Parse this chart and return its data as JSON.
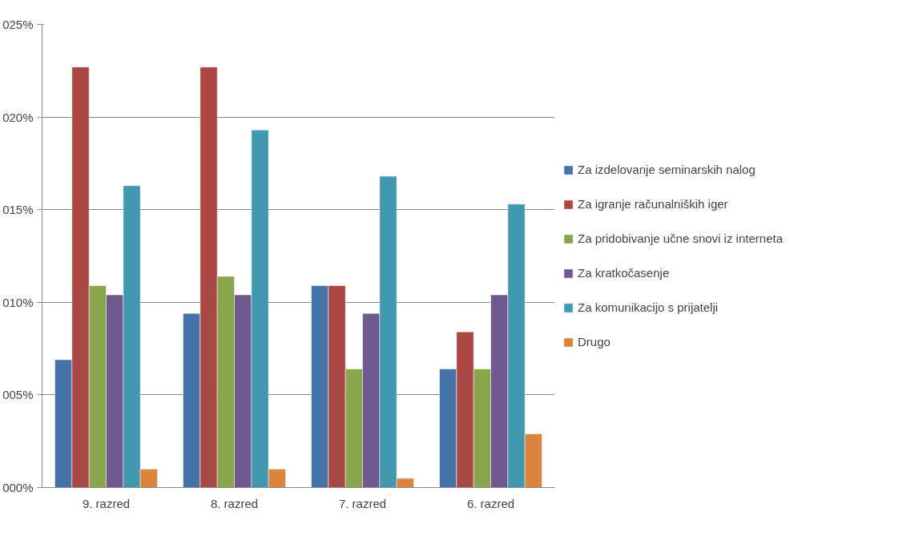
{
  "chart_data": {
    "type": "bar",
    "categories": [
      "9. razred",
      "8. razred",
      "7. razred",
      "6. razred"
    ],
    "series": [
      {
        "name": "Za izdelovanje seminarskih nalog",
        "color": "#4572a7",
        "values": [
          6.9,
          9.4,
          10.9,
          6.4
        ]
      },
      {
        "name": "Za igranje računalniških iger",
        "color": "#aa4643",
        "values": [
          22.7,
          22.7,
          10.9,
          8.4
        ]
      },
      {
        "name": "Za pridobivanje učne snovi iz interneta",
        "color": "#89a54e",
        "values": [
          10.9,
          11.4,
          6.4,
          6.4
        ]
      },
      {
        "name": "Za kratkočasenje",
        "color": "#71588f",
        "values": [
          10.4,
          10.4,
          9.4,
          10.4
        ]
      },
      {
        "name": "Za komunikacijo s prijatelji",
        "color": "#4198af",
        "values": [
          16.3,
          19.3,
          16.8,
          15.3
        ]
      },
      {
        "name": "Drugo",
        "color": "#db843d",
        "values": [
          1.0,
          1.0,
          0.5,
          2.9
        ]
      }
    ],
    "ylim": [
      0,
      25
    ],
    "yticks": [
      {
        "value": 0,
        "label": "000%"
      },
      {
        "value": 5,
        "label": "005%"
      },
      {
        "value": 10,
        "label": "010%"
      },
      {
        "value": 15,
        "label": "015%"
      },
      {
        "value": 20,
        "label": "020%"
      },
      {
        "value": 25,
        "label": "025%"
      }
    ],
    "grid": "y",
    "legend": "right"
  }
}
